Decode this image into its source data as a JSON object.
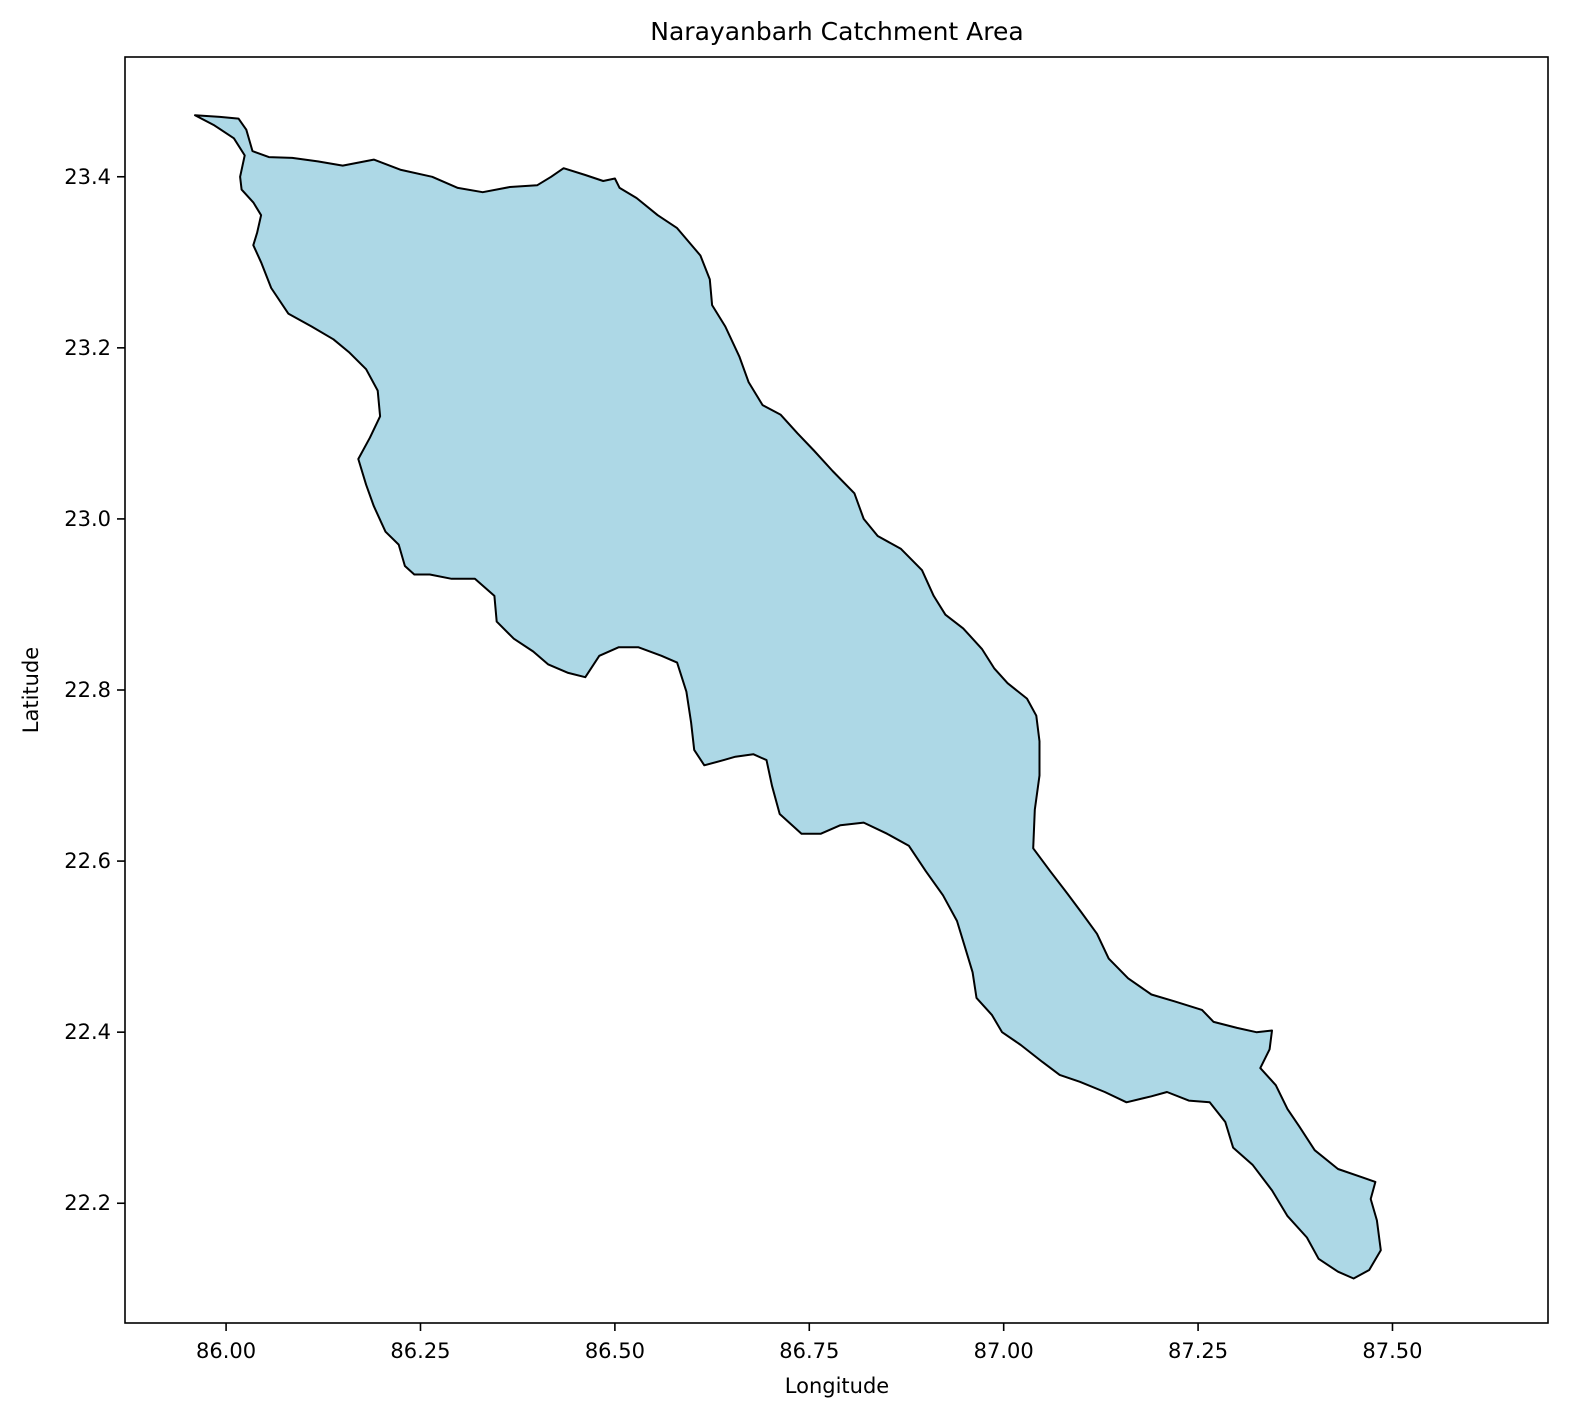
{
  "chart_data": {
    "type": "map",
    "title": "Narayanbarh Catchment Area",
    "xlabel": "Longitude",
    "ylabel": "Latitude",
    "xlim": [
      85.87,
      87.7
    ],
    "ylim": [
      22.06,
      23.54
    ],
    "xticks": [
      {
        "value": 86.0,
        "label": "86.00"
      },
      {
        "value": 86.25,
        "label": "86.25"
      },
      {
        "value": 86.5,
        "label": "86.50"
      },
      {
        "value": 86.75,
        "label": "86.75"
      },
      {
        "value": 87.0,
        "label": "87.00"
      },
      {
        "value": 87.25,
        "label": "87.25"
      },
      {
        "value": 87.5,
        "label": "87.50"
      }
    ],
    "yticks": [
      {
        "value": 22.2,
        "label": "22.2"
      },
      {
        "value": 22.4,
        "label": "22.4"
      },
      {
        "value": 22.6,
        "label": "22.6"
      },
      {
        "value": 22.8,
        "label": "22.8"
      },
      {
        "value": 23.0,
        "label": "23.0"
      },
      {
        "value": 23.2,
        "label": "23.2"
      },
      {
        "value": 23.4,
        "label": "23.4"
      }
    ],
    "grid": false,
    "fill_color": "#add8e6",
    "edge_color": "#000000",
    "boundary": [
      [
        85.96,
        23.472
      ],
      [
        85.992,
        23.47
      ],
      [
        86.016,
        23.468
      ],
      [
        86.026,
        23.455
      ],
      [
        86.034,
        23.43
      ],
      [
        86.055,
        23.423
      ],
      [
        86.085,
        23.422
      ],
      [
        86.118,
        23.418
      ],
      [
        86.15,
        23.413
      ],
      [
        86.19,
        23.42
      ],
      [
        86.225,
        23.408
      ],
      [
        86.265,
        23.4
      ],
      [
        86.298,
        23.387
      ],
      [
        86.33,
        23.382
      ],
      [
        86.365,
        23.388
      ],
      [
        86.4,
        23.39
      ],
      [
        86.418,
        23.4
      ],
      [
        86.434,
        23.41
      ],
      [
        86.462,
        23.402
      ],
      [
        86.485,
        23.395
      ],
      [
        86.5,
        23.398
      ],
      [
        86.506,
        23.387
      ],
      [
        86.528,
        23.375
      ],
      [
        86.555,
        23.355
      ],
      [
        86.58,
        23.34
      ],
      [
        86.61,
        23.308
      ],
      [
        86.622,
        23.28
      ],
      [
        86.625,
        23.25
      ],
      [
        86.642,
        23.225
      ],
      [
        86.66,
        23.19
      ],
      [
        86.672,
        23.16
      ],
      [
        86.69,
        23.133
      ],
      [
        86.713,
        23.122
      ],
      [
        86.735,
        23.1
      ],
      [
        86.756,
        23.08
      ],
      [
        86.78,
        23.056
      ],
      [
        86.808,
        23.03
      ],
      [
        86.82,
        23.0
      ],
      [
        86.838,
        22.98
      ],
      [
        86.868,
        22.965
      ],
      [
        86.895,
        22.94
      ],
      [
        86.91,
        22.91
      ],
      [
        86.925,
        22.888
      ],
      [
        86.948,
        22.872
      ],
      [
        86.972,
        22.848
      ],
      [
        86.988,
        22.825
      ],
      [
        87.005,
        22.808
      ],
      [
        87.03,
        22.79
      ],
      [
        87.042,
        22.77
      ],
      [
        87.046,
        22.74
      ],
      [
        87.046,
        22.7
      ],
      [
        87.04,
        22.66
      ],
      [
        87.038,
        22.615
      ],
      [
        87.06,
        22.588
      ],
      [
        87.082,
        22.562
      ],
      [
        87.1,
        22.54
      ],
      [
        87.12,
        22.515
      ],
      [
        87.135,
        22.486
      ],
      [
        87.16,
        22.463
      ],
      [
        87.19,
        22.444
      ],
      [
        87.22,
        22.436
      ],
      [
        87.255,
        22.426
      ],
      [
        87.27,
        22.412
      ],
      [
        87.3,
        22.405
      ],
      [
        87.325,
        22.4
      ],
      [
        87.345,
        22.402
      ],
      [
        87.342,
        22.38
      ],
      [
        87.33,
        22.358
      ],
      [
        87.35,
        22.338
      ],
      [
        87.365,
        22.31
      ],
      [
        87.38,
        22.29
      ],
      [
        87.4,
        22.262
      ],
      [
        87.43,
        22.24
      ],
      [
        87.462,
        22.23
      ],
      [
        87.478,
        22.225
      ],
      [
        87.472,
        22.205
      ],
      [
        87.48,
        22.18
      ],
      [
        87.485,
        22.145
      ],
      [
        87.47,
        22.122
      ],
      [
        87.45,
        22.112
      ],
      [
        87.43,
        22.12
      ],
      [
        87.405,
        22.135
      ],
      [
        87.39,
        22.16
      ],
      [
        87.365,
        22.185
      ],
      [
        87.345,
        22.215
      ],
      [
        87.32,
        22.245
      ],
      [
        87.295,
        22.265
      ],
      [
        87.285,
        22.295
      ],
      [
        87.265,
        22.318
      ],
      [
        87.238,
        22.32
      ],
      [
        87.21,
        22.33
      ],
      [
        87.19,
        22.325
      ],
      [
        87.158,
        22.318
      ],
      [
        87.13,
        22.33
      ],
      [
        87.098,
        22.342
      ],
      [
        87.072,
        22.35
      ],
      [
        87.05,
        22.365
      ],
      [
        87.022,
        22.385
      ],
      [
        86.998,
        22.4
      ],
      [
        86.985,
        22.42
      ],
      [
        86.965,
        22.44
      ],
      [
        86.96,
        22.47
      ],
      [
        86.95,
        22.5
      ],
      [
        86.94,
        22.53
      ],
      [
        86.922,
        22.56
      ],
      [
        86.9,
        22.588
      ],
      [
        86.878,
        22.618
      ],
      [
        86.85,
        22.632
      ],
      [
        86.82,
        22.645
      ],
      [
        86.79,
        22.642
      ],
      [
        86.765,
        22.632
      ],
      [
        86.74,
        22.632
      ],
      [
        86.712,
        22.655
      ],
      [
        86.702,
        22.688
      ],
      [
        86.695,
        22.718
      ],
      [
        86.678,
        22.725
      ],
      [
        86.655,
        22.722
      ],
      [
        86.64,
        22.718
      ],
      [
        86.615,
        22.712
      ],
      [
        86.602,
        22.73
      ],
      [
        86.598,
        22.762
      ],
      [
        86.592,
        22.798
      ],
      [
        86.58,
        22.832
      ],
      [
        86.56,
        22.84
      ],
      [
        86.53,
        22.85
      ],
      [
        86.505,
        22.85
      ],
      [
        86.48,
        22.84
      ],
      [
        86.462,
        22.815
      ],
      [
        86.44,
        22.82
      ],
      [
        86.414,
        22.83
      ],
      [
        86.395,
        22.845
      ],
      [
        86.37,
        22.86
      ],
      [
        86.348,
        22.88
      ],
      [
        86.345,
        22.91
      ],
      [
        86.32,
        22.93
      ],
      [
        86.29,
        22.93
      ],
      [
        86.262,
        22.935
      ],
      [
        86.242,
        22.935
      ],
      [
        86.23,
        22.945
      ],
      [
        86.222,
        22.97
      ],
      [
        86.205,
        22.985
      ],
      [
        86.19,
        23.015
      ],
      [
        86.18,
        23.04
      ],
      [
        86.17,
        23.07
      ],
      [
        86.185,
        23.095
      ],
      [
        86.198,
        23.12
      ],
      [
        86.195,
        23.15
      ],
      [
        86.18,
        23.175
      ],
      [
        86.158,
        23.195
      ],
      [
        86.138,
        23.21
      ],
      [
        86.11,
        23.225
      ],
      [
        86.08,
        23.24
      ],
      [
        86.058,
        23.27
      ],
      [
        86.045,
        23.3
      ],
      [
        86.035,
        23.32
      ],
      [
        86.04,
        23.335
      ],
      [
        86.045,
        23.355
      ],
      [
        86.035,
        23.37
      ],
      [
        86.02,
        23.385
      ],
      [
        86.018,
        23.4
      ],
      [
        86.024,
        23.425
      ],
      [
        86.01,
        23.445
      ],
      [
        85.985,
        23.46
      ],
      [
        85.96,
        23.472
      ]
    ]
  }
}
